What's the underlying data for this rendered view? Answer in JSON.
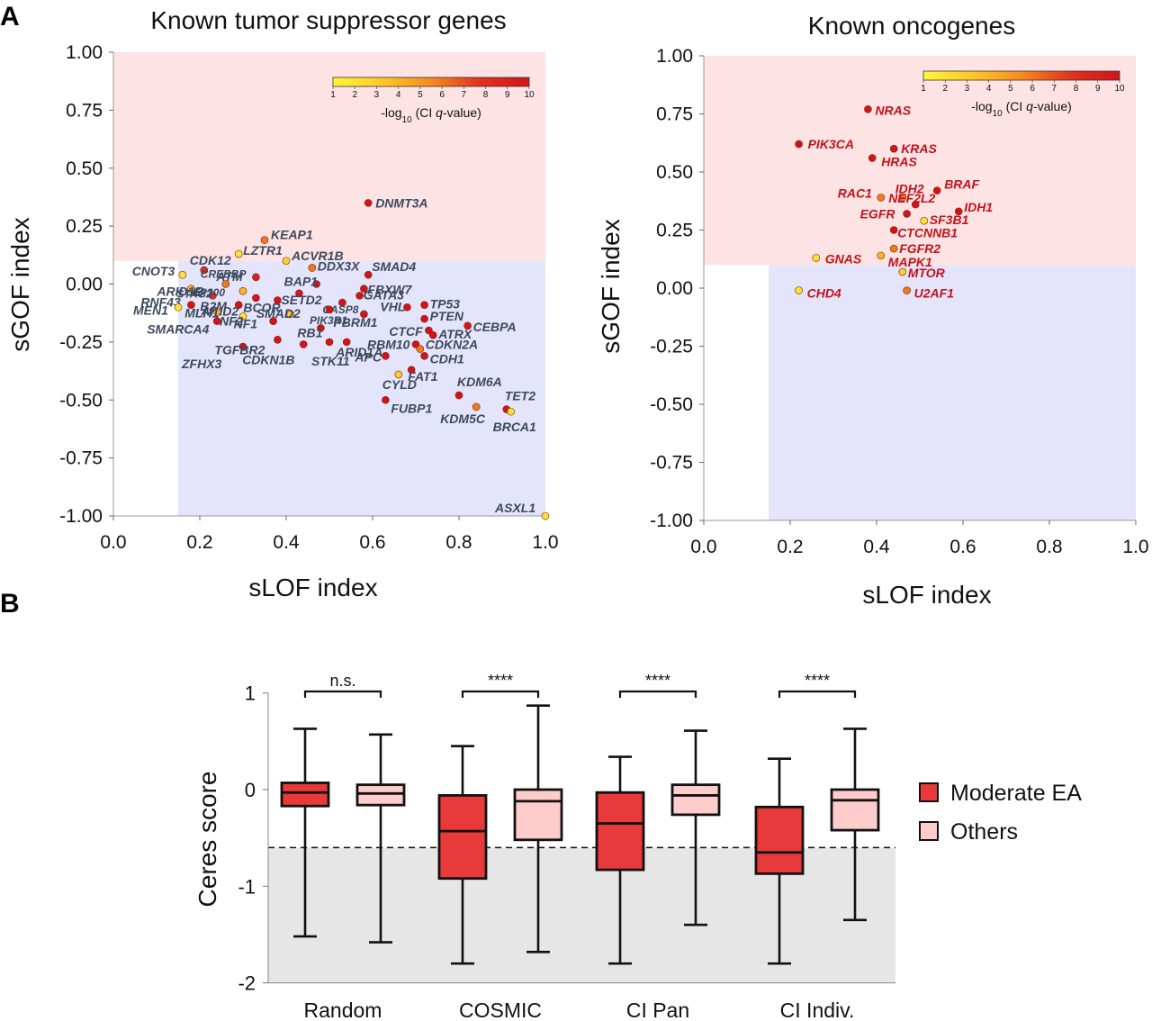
{
  "panels": {
    "a": "A",
    "b": "B"
  },
  "colorbar": {
    "ticks": [
      "1",
      "2",
      "3",
      "4",
      "5",
      "6",
      "7",
      "8",
      "9",
      "10"
    ],
    "label_prefix": "-log",
    "label_sub": "10",
    "label_mid": " (CI ",
    "label_italic": "q",
    "label_suffix": "-value)"
  },
  "chart_data": [
    {
      "type": "scatter",
      "title": "Known tumor suppressor genes",
      "xlabel": "sLOF index",
      "ylabel": "sGOF index",
      "xlim": [
        0,
        1
      ],
      "ylim": [
        -1,
        1
      ],
      "xticks": [
        "0.0",
        "0.2",
        "0.4",
        "0.6",
        "0.8",
        "1.0"
      ],
      "yticks": [
        "1.00",
        "0.75",
        "0.50",
        "0.25",
        "0.00",
        "-0.25",
        "-0.50",
        "-0.75",
        "-1.00"
      ],
      "regions": {
        "gof_threshold": 0.1,
        "lof_threshold": 0.15
      },
      "points": [
        {
          "name": "DNMT3A",
          "x": 0.59,
          "y": 0.35,
          "q": 10
        },
        {
          "name": "KEAP1",
          "x": 0.35,
          "y": 0.19,
          "q": 6
        },
        {
          "name": "LZTR1",
          "x": 0.29,
          "y": 0.13,
          "q": 2
        },
        {
          "name": "ACVR1B",
          "x": 0.4,
          "y": 0.1,
          "q": 3
        },
        {
          "name": "CDK12",
          "x": 0.21,
          "y": 0.06,
          "q": 8
        },
        {
          "name": "CNOT3",
          "x": 0.16,
          "y": 0.04,
          "q": 2
        },
        {
          "name": "ATM",
          "x": 0.33,
          "y": 0.03,
          "q": 9
        },
        {
          "name": "DDX3X",
          "x": 0.46,
          "y": 0.07,
          "q": 6
        },
        {
          "name": "SMAD4",
          "x": 0.59,
          "y": 0.04,
          "q": 10
        },
        {
          "name": "CREBBP",
          "x": 0.26,
          "y": 0.0,
          "q": 6
        },
        {
          "name": "BAP1",
          "x": 0.47,
          "y": 0.0,
          "q": 10
        },
        {
          "name": "FBXW7",
          "x": 0.58,
          "y": -0.02,
          "q": 10
        },
        {
          "name": "ARID1B",
          "x": 0.18,
          "y": -0.02,
          "q": 4
        },
        {
          "name": "STAG2",
          "x": 0.23,
          "y": -0.05,
          "q": 8
        },
        {
          "name": "EP300",
          "x": 0.3,
          "y": -0.03,
          "q": 4
        },
        {
          "name": "SETD2",
          "x": 0.43,
          "y": -0.04,
          "q": 10
        },
        {
          "name": "GATA3",
          "x": 0.57,
          "y": -0.05,
          "q": 10
        },
        {
          "name": "B2M",
          "x": 0.33,
          "y": -0.06,
          "q": 10
        },
        {
          "name": "BCOR",
          "x": 0.38,
          "y": -0.07,
          "q": 10
        },
        {
          "name": "CASP8",
          "x": 0.53,
          "y": -0.08,
          "q": 10
        },
        {
          "name": "TP53",
          "x": 0.72,
          "y": -0.09,
          "q": 10
        },
        {
          "name": "RNF43",
          "x": 0.18,
          "y": -0.09,
          "q": 10
        },
        {
          "name": "ARID2",
          "x": 0.29,
          "y": -0.09,
          "q": 10
        },
        {
          "name": "MEN1",
          "x": 0.15,
          "y": -0.1,
          "q": 2
        },
        {
          "name": "MLH1",
          "x": 0.24,
          "y": -0.12,
          "q": 4
        },
        {
          "name": "NF2",
          "x": 0.3,
          "y": -0.14,
          "q": 2
        },
        {
          "name": "SMAD2",
          "x": 0.41,
          "y": -0.13,
          "q": 3
        },
        {
          "name": "PIK3R1",
          "x": 0.5,
          "y": -0.11,
          "q": 10
        },
        {
          "name": "PBRM1",
          "x": 0.58,
          "y": -0.13,
          "q": 10
        },
        {
          "name": "VHL",
          "x": 0.68,
          "y": -0.1,
          "q": 10
        },
        {
          "name": "PTEN",
          "x": 0.72,
          "y": -0.15,
          "q": 10
        },
        {
          "name": "CEBPA",
          "x": 0.82,
          "y": -0.18,
          "q": 10
        },
        {
          "name": "SMARCA4",
          "x": 0.24,
          "y": -0.16,
          "q": 10
        },
        {
          "name": "NF1",
          "x": 0.37,
          "y": -0.16,
          "q": 10
        },
        {
          "name": "RB1",
          "x": 0.48,
          "y": -0.19,
          "q": 10
        },
        {
          "name": "CTCF",
          "x": 0.73,
          "y": -0.2,
          "q": 10
        },
        {
          "name": "ATRX",
          "x": 0.74,
          "y": -0.22,
          "q": 10
        },
        {
          "name": "ZFHX3",
          "x": 0.3,
          "y": -0.27,
          "q": 10
        },
        {
          "name": "TGFBR2",
          "x": 0.38,
          "y": -0.24,
          "q": 10
        },
        {
          "name": "CDKN1B",
          "x": 0.44,
          "y": -0.26,
          "q": 10
        },
        {
          "name": "ARID1A",
          "x": 0.54,
          "y": -0.25,
          "q": 10
        },
        {
          "name": "RBM10",
          "x": 0.7,
          "y": -0.26,
          "q": 10
        },
        {
          "name": "CDKN2A",
          "x": 0.71,
          "y": -0.28,
          "q": 6
        },
        {
          "name": "STK11",
          "x": 0.5,
          "y": -0.25,
          "q": 10
        },
        {
          "name": "CDH1",
          "x": 0.72,
          "y": -0.31,
          "q": 10
        },
        {
          "name": "APC",
          "x": 0.63,
          "y": -0.31,
          "q": 10
        },
        {
          "name": "FAT1",
          "x": 0.69,
          "y": -0.37,
          "q": 10
        },
        {
          "name": "CYLD",
          "x": 0.66,
          "y": -0.39,
          "q": 3
        },
        {
          "name": "KDM6A",
          "x": 0.8,
          "y": -0.48,
          "q": 10
        },
        {
          "name": "FUBP1",
          "x": 0.63,
          "y": -0.5,
          "q": 10
        },
        {
          "name": "TET2",
          "x": 0.91,
          "y": -0.54,
          "q": 10
        },
        {
          "name": "KDM5C",
          "x": 0.84,
          "y": -0.53,
          "q": 6
        },
        {
          "name": "BRCA1",
          "x": 0.92,
          "y": -0.55,
          "q": 2
        },
        {
          "name": "ASXL1",
          "x": 1.0,
          "y": -1.0,
          "q": 2
        }
      ]
    },
    {
      "type": "scatter",
      "title": "Known oncogenes",
      "xlabel": "sLOF index",
      "ylabel": "sGOF index",
      "xlim": [
        0,
        1
      ],
      "ylim": [
        -1,
        1
      ],
      "xticks": [
        "0.0",
        "0.2",
        "0.4",
        "0.6",
        "0.8",
        "1.0"
      ],
      "yticks": [
        "1.00",
        "0.75",
        "0.50",
        "0.25",
        "0.00",
        "-0.25",
        "-0.50",
        "-0.75",
        "-1.00"
      ],
      "regions": {
        "gof_threshold": 0.1,
        "lof_threshold": 0.15
      },
      "points": [
        {
          "name": "NRAS",
          "x": 0.38,
          "y": 0.77,
          "q": 10
        },
        {
          "name": "PIK3CA",
          "x": 0.22,
          "y": 0.62,
          "q": 10
        },
        {
          "name": "KRAS",
          "x": 0.44,
          "y": 0.6,
          "q": 10
        },
        {
          "name": "HRAS",
          "x": 0.39,
          "y": 0.56,
          "q": 10
        },
        {
          "name": "RAC1",
          "x": 0.41,
          "y": 0.39,
          "q": 6
        },
        {
          "name": "IDH2",
          "x": 0.46,
          "y": 0.39,
          "q": 6
        },
        {
          "name": "BRAF",
          "x": 0.54,
          "y": 0.42,
          "q": 10
        },
        {
          "name": "NEF2L2",
          "x": 0.49,
          "y": 0.36,
          "q": 10
        },
        {
          "name": "IDH1",
          "x": 0.59,
          "y": 0.33,
          "q": 10
        },
        {
          "name": "EGFR",
          "x": 0.47,
          "y": 0.32,
          "q": 10
        },
        {
          "name": "SF3B1",
          "x": 0.51,
          "y": 0.29,
          "q": 2
        },
        {
          "name": "CTCNNB1",
          "x": 0.44,
          "y": 0.25,
          "q": 10
        },
        {
          "name": "FGFR2",
          "x": 0.44,
          "y": 0.17,
          "q": 6
        },
        {
          "name": "GNAS",
          "x": 0.26,
          "y": 0.13,
          "q": 2
        },
        {
          "name": "MAPK1",
          "x": 0.41,
          "y": 0.14,
          "q": 4
        },
        {
          "name": "MTOR",
          "x": 0.46,
          "y": 0.07,
          "q": 3
        },
        {
          "name": "CHD4",
          "x": 0.22,
          "y": -0.01,
          "q": 2
        },
        {
          "name": "U2AF1",
          "x": 0.47,
          "y": -0.01,
          "q": 6
        }
      ]
    },
    {
      "type": "box",
      "ylabel": "Ceres score",
      "ylim": [
        -2,
        1
      ],
      "yticks": [
        "1",
        "0",
        "-1",
        "-2"
      ],
      "threshold": -0.6,
      "categories": [
        "Random",
        "COSMIC",
        "CI Pan",
        "CI Indiv."
      ],
      "significance": [
        "n.s.",
        "****",
        "****",
        "****"
      ],
      "legend": [
        "Moderate EA",
        "Others"
      ],
      "colors": {
        "moderate": "#e83a3a",
        "others": "#ffcccc"
      },
      "series": [
        {
          "name": "Moderate EA",
          "boxes": [
            {
              "min": -1.52,
              "q1": -0.17,
              "median": -0.03,
              "q3": 0.07,
              "max": 0.63
            },
            {
              "min": -1.8,
              "q1": -0.92,
              "median": -0.43,
              "q3": -0.06,
              "max": 0.45
            },
            {
              "min": -1.8,
              "q1": -0.83,
              "median": -0.35,
              "q3": -0.03,
              "max": 0.34
            },
            {
              "min": -1.8,
              "q1": -0.87,
              "median": -0.65,
              "q3": -0.18,
              "max": 0.32
            }
          ]
        },
        {
          "name": "Others",
          "boxes": [
            {
              "min": -1.58,
              "q1": -0.16,
              "median": -0.04,
              "q3": 0.05,
              "max": 0.57
            },
            {
              "min": -1.68,
              "q1": -0.52,
              "median": -0.12,
              "q3": 0.0,
              "max": 0.87
            },
            {
              "min": -1.4,
              "q1": -0.26,
              "median": -0.06,
              "q3": 0.05,
              "max": 0.61
            },
            {
              "min": -1.35,
              "q1": -0.42,
              "median": -0.11,
              "q3": 0.0,
              "max": 0.63
            }
          ]
        }
      ]
    }
  ]
}
